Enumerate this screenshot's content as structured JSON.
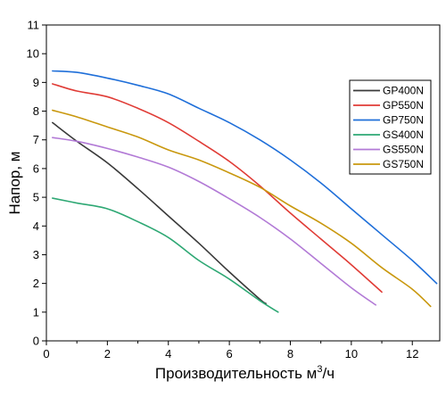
{
  "chart_data": {
    "type": "line",
    "title": "",
    "ylabel": "Напор, м",
    "xlabel_main": "Производительность м",
    "xlabel_sup": "3",
    "xlabel_tail": "/ч",
    "xlim": [
      0,
      12.9
    ],
    "ylim": [
      0,
      11
    ],
    "xticks": [
      0,
      2,
      4,
      6,
      8,
      10,
      12
    ],
    "yticks": [
      0,
      1,
      2,
      3,
      4,
      5,
      6,
      7,
      8,
      9,
      10,
      11
    ],
    "grid": false,
    "legend_position": "right",
    "series": [
      {
        "name": "GP400N",
        "color": "#3a3a3a",
        "points": [
          [
            0.2,
            7.6
          ],
          [
            1.0,
            6.95
          ],
          [
            2.0,
            6.2
          ],
          [
            3.0,
            5.3
          ],
          [
            4.0,
            4.35
          ],
          [
            5.0,
            3.4
          ],
          [
            6.0,
            2.4
          ],
          [
            7.0,
            1.45
          ],
          [
            7.2,
            1.3
          ]
        ]
      },
      {
        "name": "GP550N",
        "color": "#e03c36",
        "points": [
          [
            0.2,
            8.95
          ],
          [
            1.0,
            8.7
          ],
          [
            2.0,
            8.5
          ],
          [
            3.0,
            8.1
          ],
          [
            4.0,
            7.6
          ],
          [
            5.0,
            6.95
          ],
          [
            6.0,
            6.25
          ],
          [
            7.0,
            5.4
          ],
          [
            8.0,
            4.45
          ],
          [
            9.0,
            3.55
          ],
          [
            10.0,
            2.65
          ],
          [
            11.0,
            1.7
          ]
        ]
      },
      {
        "name": "GP750N",
        "color": "#1f6fd9",
        "points": [
          [
            0.2,
            9.4
          ],
          [
            1.0,
            9.35
          ],
          [
            2.0,
            9.15
          ],
          [
            3.0,
            8.9
          ],
          [
            4.0,
            8.6
          ],
          [
            5.0,
            8.1
          ],
          [
            6.0,
            7.6
          ],
          [
            7.0,
            7.0
          ],
          [
            8.0,
            6.3
          ],
          [
            9.0,
            5.5
          ],
          [
            10.0,
            4.6
          ],
          [
            11.0,
            3.7
          ],
          [
            12.0,
            2.8
          ],
          [
            12.8,
            2.0
          ]
        ]
      },
      {
        "name": "GS400N",
        "color": "#2ea874",
        "points": [
          [
            0.2,
            4.97
          ],
          [
            1.0,
            4.8
          ],
          [
            2.0,
            4.6
          ],
          [
            3.0,
            4.15
          ],
          [
            4.0,
            3.6
          ],
          [
            5.0,
            2.8
          ],
          [
            6.0,
            2.15
          ],
          [
            7.0,
            1.4
          ],
          [
            7.6,
            1.0
          ]
        ]
      },
      {
        "name": "GS550N",
        "color": "#b27ad6",
        "points": [
          [
            0.2,
            7.08
          ],
          [
            1.0,
            6.95
          ],
          [
            2.0,
            6.7
          ],
          [
            3.0,
            6.4
          ],
          [
            4.0,
            6.05
          ],
          [
            5.0,
            5.55
          ],
          [
            6.0,
            4.95
          ],
          [
            7.0,
            4.3
          ],
          [
            8.0,
            3.55
          ],
          [
            9.0,
            2.7
          ],
          [
            10.0,
            1.85
          ],
          [
            10.8,
            1.25
          ]
        ]
      },
      {
        "name": "GS750N",
        "color": "#c9980e",
        "points": [
          [
            0.2,
            8.03
          ],
          [
            1.0,
            7.8
          ],
          [
            2.0,
            7.45
          ],
          [
            3.0,
            7.1
          ],
          [
            4.0,
            6.65
          ],
          [
            5.0,
            6.3
          ],
          [
            6.0,
            5.85
          ],
          [
            7.0,
            5.35
          ],
          [
            8.0,
            4.7
          ],
          [
            9.0,
            4.1
          ],
          [
            10.0,
            3.4
          ],
          [
            11.0,
            2.55
          ],
          [
            12.0,
            1.8
          ],
          [
            12.6,
            1.2
          ]
        ]
      }
    ]
  }
}
